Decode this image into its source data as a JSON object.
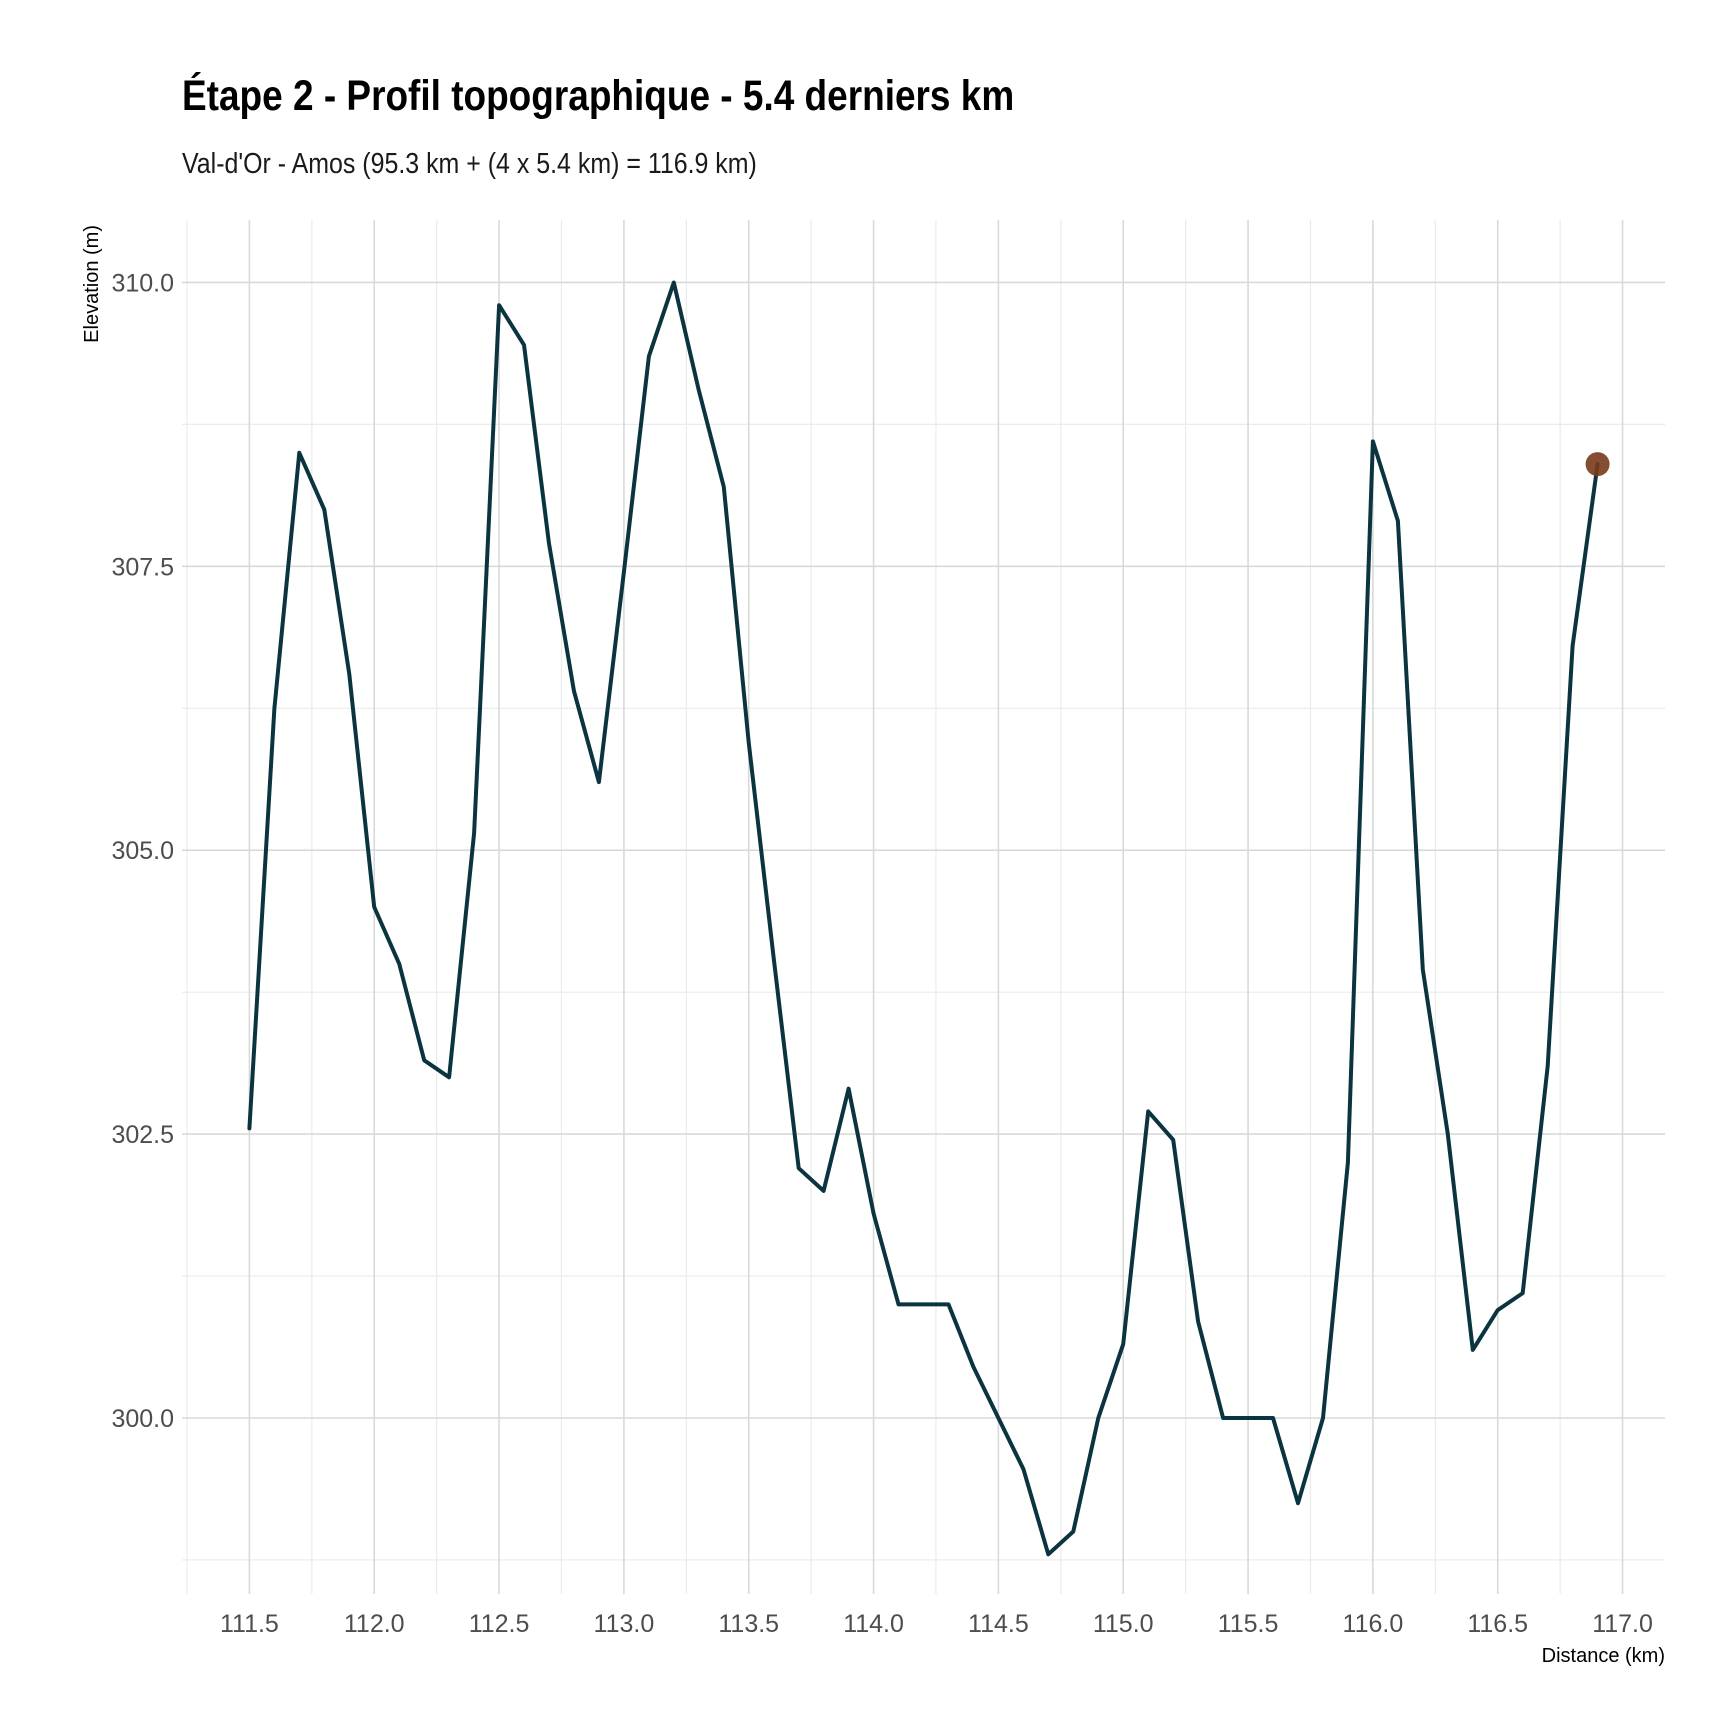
{
  "chart_data": {
    "type": "line",
    "title": "Étape 2 - Profil topographique - 5.4 derniers km",
    "subtitle": "Val-d'Or - Amos (95.3 km + (4 x 5.4 km) = 116.9 km)",
    "xlabel": "Distance (km)",
    "ylabel": "Elevation (m)",
    "xlim": [
      111.23,
      117.17
    ],
    "ylim": [
      298.45,
      310.55
    ],
    "x_ticks": [
      111.5,
      112.0,
      112.5,
      113.0,
      113.5,
      114.0,
      114.5,
      115.0,
      115.5,
      116.0,
      116.5,
      117.0
    ],
    "x_tick_labels": [
      "111.5",
      "112.0",
      "112.5",
      "113.0",
      "113.5",
      "114.0",
      "114.5",
      "115.0",
      "115.5",
      "116.0",
      "116.5",
      "117.0"
    ],
    "y_ticks": [
      300.0,
      302.5,
      305.0,
      307.5,
      310.0
    ],
    "y_tick_labels": [
      "300.0",
      "302.5",
      "305.0",
      "307.5",
      "310.0"
    ],
    "grid": true,
    "line_color": "#0b3440",
    "marker_color": "#7a3a1c",
    "series": [
      {
        "x": [
          111.5,
          111.6,
          111.7,
          111.8,
          111.9,
          112.0,
          112.1,
          112.2,
          112.3,
          112.4,
          112.5,
          112.6,
          112.7,
          112.8,
          112.9,
          113.0,
          113.1,
          113.2,
          113.3,
          113.4,
          113.5,
          113.6,
          113.7,
          113.8,
          113.9,
          114.0,
          114.1,
          114.2,
          114.3,
          114.4,
          114.5,
          114.6,
          114.7,
          114.8,
          114.9,
          115.0,
          115.1,
          115.2,
          115.3,
          115.4,
          115.5,
          115.6,
          115.7,
          115.8,
          115.9,
          116.0,
          116.1,
          116.2,
          116.3,
          116.4,
          116.5,
          116.6,
          116.7,
          116.8,
          116.9
        ],
        "y": [
          302.55,
          306.25,
          308.5,
          308.0,
          306.55,
          304.5,
          304.0,
          303.15,
          303.0,
          305.15,
          309.8,
          309.45,
          307.7,
          306.4,
          305.6,
          307.45,
          309.35,
          310.0,
          309.05,
          308.2,
          305.95,
          304.05,
          302.2,
          302.0,
          302.9,
          301.8,
          301.0,
          301.0,
          301.0,
          300.45,
          300.0,
          299.55,
          298.8,
          299.0,
          300.0,
          300.65,
          302.7,
          302.45,
          300.85,
          300.0,
          300.0,
          300.0,
          299.25,
          300.0,
          302.25,
          308.6,
          307.9,
          303.95,
          302.5,
          300.6,
          300.95,
          301.1,
          303.1,
          306.8,
          308.4
        ]
      }
    ],
    "highlight_point": {
      "x": 116.9,
      "y": 308.4
    }
  }
}
